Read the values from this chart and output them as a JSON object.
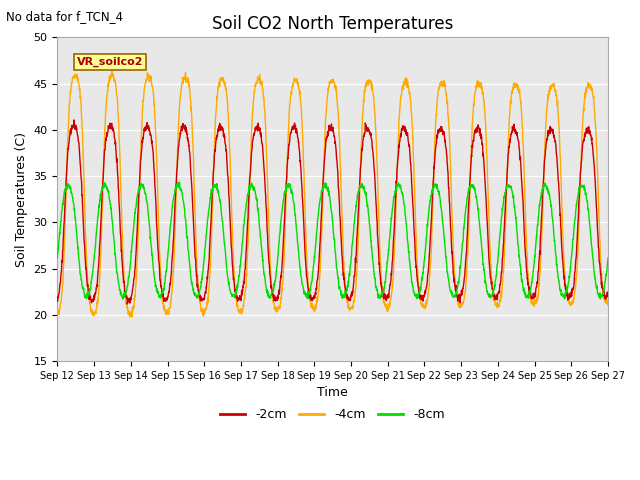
{
  "title": "Soil CO2 North Temperatures",
  "no_data_text": "No data for f_TCN_4",
  "vr_label": "VR_soilco2",
  "ylabel": "Soil Temperatures (C)",
  "xlabel": "Time",
  "ylim": [
    15,
    50
  ],
  "background_color": "#e8e8e8",
  "series": {
    "-2cm": {
      "color": "#cc0000",
      "label": "-2cm"
    },
    "-4cm": {
      "color": "#ffaa00",
      "label": "-4cm"
    },
    "-8cm": {
      "color": "#00dd00",
      "label": "-8cm"
    }
  },
  "x_tick_labels": [
    "Sep 12",
    "Sep 13",
    "Sep 14",
    "Sep 15",
    "Sep 16",
    "Sep 17",
    "Sep 18",
    "Sep 19",
    "Sep 20",
    "Sep 21",
    "Sep 22",
    "Sep 23",
    "Sep 24",
    "Sep 25",
    "Sep 26",
    "Sep 27"
  ],
  "yticks": [
    15,
    20,
    25,
    30,
    35,
    40,
    45,
    50
  ],
  "n_points": 2000
}
